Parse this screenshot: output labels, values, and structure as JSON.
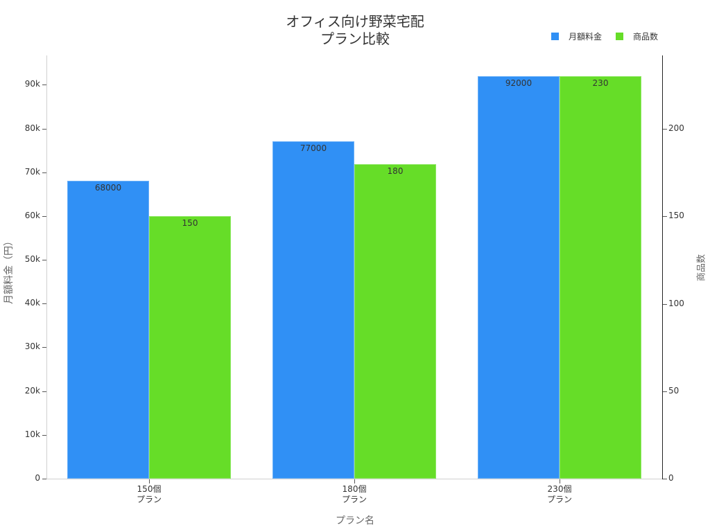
{
  "chart_data": {
    "type": "bar",
    "title": "オフィス向け野菜宅配\nプラン比較",
    "title_lines": [
      "オフィス向け野菜宅配",
      "プラン比較"
    ],
    "xlabel": "プラン名",
    "ylabel": "月額料金（円）",
    "y2label": "商品数",
    "categories": [
      "150個\nプラン",
      "180個\nプラン",
      "230個\nプラン"
    ],
    "category_lines": [
      [
        "150個",
        "プラン"
      ],
      [
        "180個",
        "プラン"
      ],
      [
        "230個",
        "プラン"
      ]
    ],
    "series": [
      {
        "name": "月額料金",
        "axis": "left",
        "color": "#3090f5",
        "values": [
          68000,
          77000,
          92000
        ],
        "labels": [
          "68000",
          "77000",
          "92000"
        ]
      },
      {
        "name": "商品数",
        "axis": "right",
        "color": "#66dd28",
        "values": [
          150,
          180,
          230
        ],
        "labels": [
          "150",
          "180",
          "230"
        ]
      }
    ],
    "ylim": [
      0,
      96700
    ],
    "y2lim": [
      0,
      242
    ],
    "yticks": [
      0,
      10000,
      20000,
      30000,
      40000,
      50000,
      60000,
      70000,
      80000,
      90000
    ],
    "ytick_labels": [
      "0",
      "10k",
      "20k",
      "30k",
      "40k",
      "50k",
      "60k",
      "70k",
      "80k",
      "90k"
    ],
    "y2ticks": [
      0,
      50,
      100,
      150,
      200
    ],
    "y2tick_labels": [
      "0",
      "50",
      "100",
      "150",
      "200"
    ],
    "legend_position": "top-right",
    "grid": false
  },
  "legend": {
    "items": [
      {
        "label": "月額料金",
        "color": "#3090f5"
      },
      {
        "label": "商品数",
        "color": "#66dd28"
      }
    ]
  }
}
